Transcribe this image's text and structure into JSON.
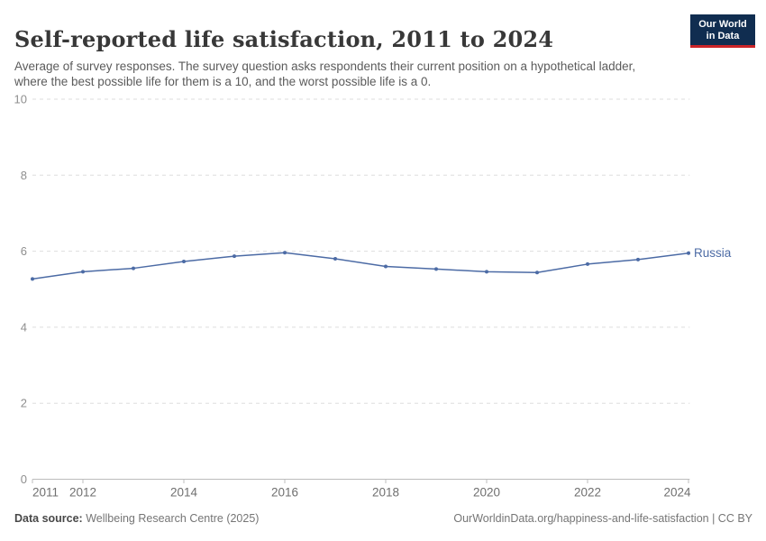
{
  "header": {
    "title": "Self-reported life satisfaction, 2011 to 2024",
    "subtitle": "Average of survey responses. The survey question asks respondents their current position on a hypothetical ladder, where the best possible life for them is a 10, and the worst possible life is a 0."
  },
  "logo": {
    "line1": "Our World",
    "line2": "in Data",
    "bg_color": "#102D50",
    "bar_color": "#CB2428"
  },
  "chart_data": {
    "type": "line",
    "title": "Self-reported life satisfaction, 2011 to 2024",
    "xlabel": "",
    "ylabel": "",
    "xlim": [
      2011,
      2024
    ],
    "ylim": [
      0,
      10
    ],
    "x_ticks": [
      2011,
      2012,
      2014,
      2016,
      2018,
      2020,
      2022,
      2024
    ],
    "y_ticks": [
      0,
      2,
      4,
      6,
      8,
      10
    ],
    "grid": "horizontal-dashed",
    "legend_position": "end-of-line-label",
    "colors": {
      "gridline": "#dedede",
      "axis": "#bdbdbd",
      "y_tick_label": "#8f8f8f",
      "x_tick_label": "#6f6f6f"
    },
    "series": [
      {
        "name": "Russia",
        "color": "#4C6BA5",
        "x": [
          2011,
          2012,
          2013,
          2014,
          2015,
          2016,
          2017,
          2018,
          2019,
          2020,
          2021,
          2022,
          2023,
          2024
        ],
        "values": [
          5.27,
          5.46,
          5.55,
          5.73,
          5.87,
          5.96,
          5.8,
          5.6,
          5.53,
          5.46,
          5.44,
          5.66,
          5.78,
          5.95
        ]
      }
    ]
  },
  "footer": {
    "source_label": "Data source:",
    "source_value": "Wellbeing Research Centre (2025)",
    "credit": "OurWorldinData.org/happiness-and-life-satisfaction | CC BY"
  }
}
